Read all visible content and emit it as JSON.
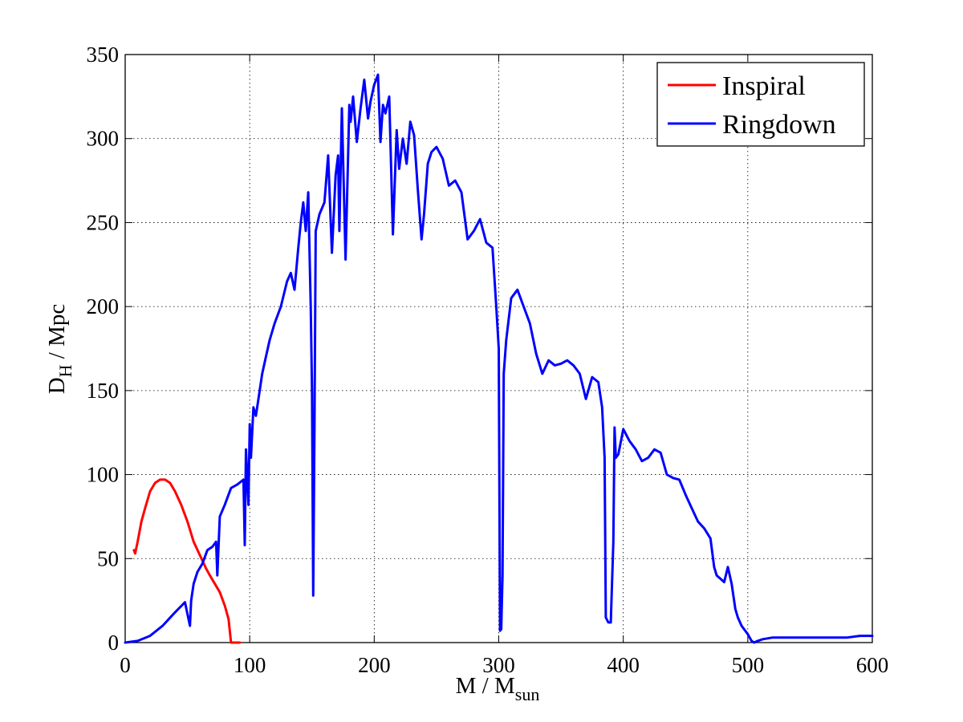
{
  "chart_data": {
    "type": "line",
    "title": "",
    "xlabel": {
      "main": "M / M",
      "sub": "sun"
    },
    "ylabel": {
      "main": "D",
      "sub": "H",
      "rest": " / Mpc"
    },
    "xlim": [
      0,
      600
    ],
    "ylim": [
      0,
      350
    ],
    "xticks": [
      0,
      100,
      200,
      300,
      400,
      500,
      600
    ],
    "yticks": [
      0,
      50,
      100,
      150,
      200,
      250,
      300,
      350
    ],
    "grid": true,
    "legend_position": "top-right",
    "series": [
      {
        "name": "Inspiral",
        "color": "#ff0000",
        "x": [
          7,
          8,
          10,
          13,
          16,
          20,
          24,
          28,
          32,
          36,
          40,
          45,
          50,
          55,
          60,
          65,
          68,
          72,
          76,
          80,
          83,
          85,
          87,
          90,
          92
        ],
        "y": [
          55,
          53,
          60,
          72,
          80,
          90,
          95,
          97,
          97,
          95,
          90,
          82,
          72,
          60,
          52,
          44,
          40,
          35,
          30,
          22,
          14,
          0,
          0,
          0,
          0
        ]
      },
      {
        "name": "Ringdown",
        "color": "#0000ff",
        "x": [
          0,
          10,
          20,
          30,
          40,
          48,
          52,
          53,
          55,
          58,
          62,
          66,
          70,
          73,
          74,
          76,
          80,
          85,
          90,
          95,
          96,
          97,
          99,
          100,
          101,
          103,
          105,
          108,
          110,
          113,
          116,
          120,
          125,
          130,
          133,
          136,
          139,
          141,
          143,
          145,
          147,
          149,
          150,
          151,
          152,
          153,
          156,
          160,
          163,
          166,
          169,
          171,
          172,
          174,
          177,
          180,
          181,
          183,
          186,
          189,
          192,
          195,
          197,
          200,
          203,
          205,
          207,
          209,
          212,
          215,
          218,
          220,
          223,
          226,
          229,
          232,
          235,
          238,
          240,
          243,
          246,
          250,
          255,
          260,
          265,
          270,
          275,
          280,
          285,
          290,
          295,
          298,
          300,
          301,
          302,
          303,
          304,
          306,
          310,
          315,
          320,
          325,
          330,
          335,
          340,
          345,
          350,
          355,
          360,
          365,
          370,
          375,
          380,
          383,
          385,
          386,
          388,
          390,
          392,
          393,
          394,
          396,
          400,
          405,
          410,
          415,
          420,
          425,
          430,
          435,
          440,
          445,
          450,
          455,
          460,
          465,
          470,
          473,
          475,
          478,
          481,
          484,
          487,
          490,
          492,
          495,
          500,
          503,
          505,
          508,
          512,
          520,
          530,
          540,
          550,
          560,
          570,
          580,
          590,
          600
        ],
        "y": [
          0,
          1,
          4,
          10,
          18,
          24,
          10,
          25,
          35,
          42,
          47,
          55,
          57,
          60,
          40,
          75,
          82,
          92,
          94,
          97,
          58,
          115,
          82,
          130,
          110,
          140,
          135,
          150,
          160,
          170,
          180,
          190,
          200,
          215,
          220,
          210,
          235,
          250,
          262,
          245,
          268,
          200,
          150,
          28,
          130,
          245,
          255,
          262,
          290,
          232,
          278,
          290,
          245,
          318,
          228,
          320,
          310,
          325,
          298,
          318,
          335,
          312,
          322,
          332,
          338,
          298,
          320,
          315,
          325,
          243,
          305,
          282,
          300,
          285,
          310,
          302,
          270,
          240,
          255,
          285,
          292,
          295,
          288,
          272,
          275,
          268,
          240,
          245,
          252,
          238,
          235,
          200,
          175,
          7,
          8,
          40,
          160,
          180,
          205,
          210,
          200,
          190,
          172,
          160,
          168,
          165,
          166,
          168,
          165,
          160,
          145,
          158,
          155,
          140,
          110,
          15,
          12,
          12,
          60,
          128,
          110,
          112,
          127,
          120,
          115,
          108,
          110,
          115,
          113,
          100,
          98,
          97,
          88,
          80,
          72,
          68,
          62,
          45,
          40,
          38,
          36,
          45,
          35,
          20,
          15,
          10,
          5,
          1,
          0,
          1,
          2,
          3,
          3,
          3,
          3,
          3,
          3,
          3,
          4,
          4
        ]
      }
    ]
  }
}
